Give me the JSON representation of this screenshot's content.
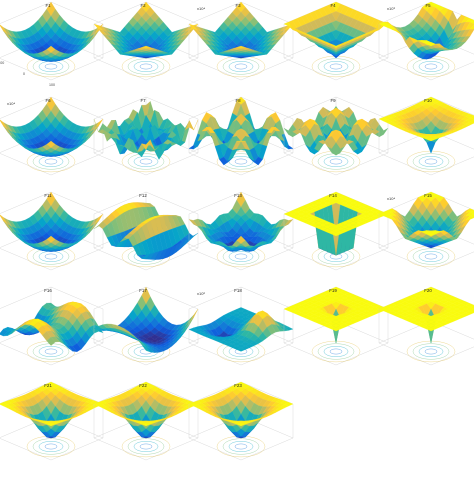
{
  "figure": {
    "columns": 5
  },
  "colormap": [
    "#352a87",
    "#0f5cdd",
    "#1481d6",
    "#06a4ca",
    "#2eb7a4",
    "#87bf77",
    "#d1bb59",
    "#fec832",
    "#f9fb0e"
  ],
  "chart_data": [
    {
      "type": "surface",
      "title": "F1",
      "z_exponent": "",
      "shape": "bowl",
      "x_ticks": [
        "-100",
        "0",
        "100"
      ]
    },
    {
      "type": "surface",
      "title": "F2",
      "z_exponent": "",
      "shape": "vbowl"
    },
    {
      "type": "surface",
      "title": "F3",
      "z_exponent": "x10⁴",
      "shape": "vbowl"
    },
    {
      "type": "surface",
      "title": "F4",
      "z_exponent": "",
      "shape": "pyramid"
    },
    {
      "type": "surface",
      "title": "F5",
      "z_exponent": "x10⁹",
      "shape": "ridge"
    },
    {
      "type": "surface",
      "title": "F6",
      "z_exponent": "x10⁴",
      "shape": "bowl"
    },
    {
      "type": "surface",
      "title": "F7",
      "z_exponent": "",
      "shape": "noisy"
    },
    {
      "type": "surface",
      "title": "F8",
      "z_exponent": "",
      "shape": "wavy"
    },
    {
      "type": "surface",
      "title": "F9",
      "z_exponent": "",
      "shape": "rastrigin"
    },
    {
      "type": "surface",
      "title": "F10",
      "z_exponent": "",
      "shape": "ackley"
    },
    {
      "type": "surface",
      "title": "F11",
      "z_exponent": "",
      "shape": "bowl"
    },
    {
      "type": "surface",
      "title": "F12",
      "z_exponent": "",
      "shape": "waves"
    },
    {
      "type": "surface",
      "title": "F13",
      "z_exponent": "",
      "shape": "bowlripple"
    },
    {
      "type": "surface",
      "title": "F14",
      "z_exponent": "",
      "shape": "plateau"
    },
    {
      "type": "surface",
      "title": "F15",
      "z_exponent": "x10⁴",
      "shape": "dip"
    },
    {
      "type": "surface",
      "title": "F16",
      "z_exponent": "",
      "shape": "camel"
    },
    {
      "type": "surface",
      "title": "F17",
      "z_exponent": "",
      "shape": "branin"
    },
    {
      "type": "surface",
      "title": "F18",
      "z_exponent": "x10⁶",
      "shape": "goldstein"
    },
    {
      "type": "surface",
      "title": "F19",
      "z_exponent": "",
      "shape": "spike"
    },
    {
      "type": "surface",
      "title": "F20",
      "z_exponent": "",
      "shape": "spike"
    },
    {
      "type": "surface",
      "title": "F21",
      "z_exponent": "",
      "shape": "funnel"
    },
    {
      "type": "surface",
      "title": "F22",
      "z_exponent": "",
      "shape": "funnel"
    },
    {
      "type": "surface",
      "title": "F23",
      "z_exponent": "",
      "shape": "funnel"
    }
  ]
}
